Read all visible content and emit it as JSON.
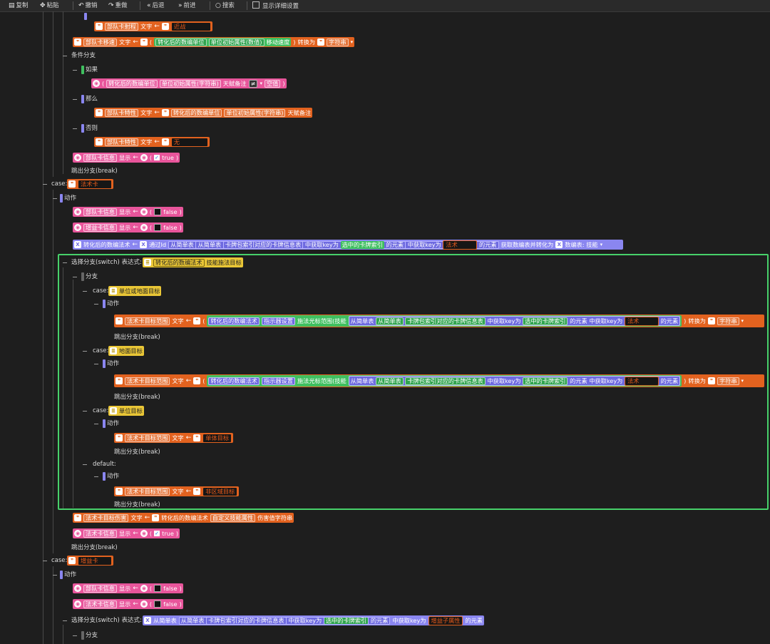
{
  "toolbar": {
    "copy": "复制",
    "paste": "粘贴",
    "undo": "撤销",
    "redo": "重做",
    "back": "后退",
    "forward": "前进",
    "search": "搜索",
    "detail": "显示详细设置"
  },
  "t": {
    "unit_range": "部队卡射程",
    "text": "文字",
    "melee": "近战",
    "unit_move": "部队卡移速",
    "converted_unit": "转化后的数编单位",
    "unit_init_num": "单位初始属性(数值)",
    "move_speed": "移动速度",
    "convert_to": "转换为",
    "string": "字符串",
    "cond_branch": "条件分支",
    "if": "如果",
    "unit_init_str": "单位初始属性(字符串)",
    "talent_note": "天赋备注",
    "neq": "≠",
    "empty": "空值",
    "then": "那么",
    "unit_trait": "部队卡特性",
    "else": "否则",
    "none": "无",
    "unit_info": "部队卡信息",
    "show": "显示",
    "true": "true",
    "false": "false",
    "break": "跳出分支(break)",
    "case": "case:",
    "spell_card": "法术卡",
    "action": "动作",
    "buff_info": "增益卡信息",
    "converted_spell": "转化后的数编法术",
    "via_id": "通过Id",
    "from_simple": "从简单表",
    "card_index": "卡牌包索引对应的卡牌信息表",
    "get_key": "中获取key为",
    "selected_index": "选中的卡牌索引",
    "element_of": "的元素",
    "spell": "法术",
    "get_table": "获取数编表并转化为",
    "table_skill": "数编表: 技能",
    "switch": "选择分支(switch) 表达式:",
    "skill_target": "技能施法目标",
    "branch": "分支",
    "unit_or_ground": "单位或地面目标",
    "spell_range": "法术卡目标范围",
    "indicator": "指示器设置",
    "cursor_range": "施法光标范围(技能",
    "ground_target": "地面目标",
    "unit_target": "单位目标",
    "single_target": "单体目标",
    "default": "default:",
    "non_area": "非区域目标",
    "spell_damage": "法术卡目标伤害",
    "custom_skill": "自定义技能属性",
    "damage_str": "伤害值字符串",
    "spell_info": "法术卡信息",
    "buff_card": "增益卡",
    "buff_sub": "增益子属性"
  }
}
